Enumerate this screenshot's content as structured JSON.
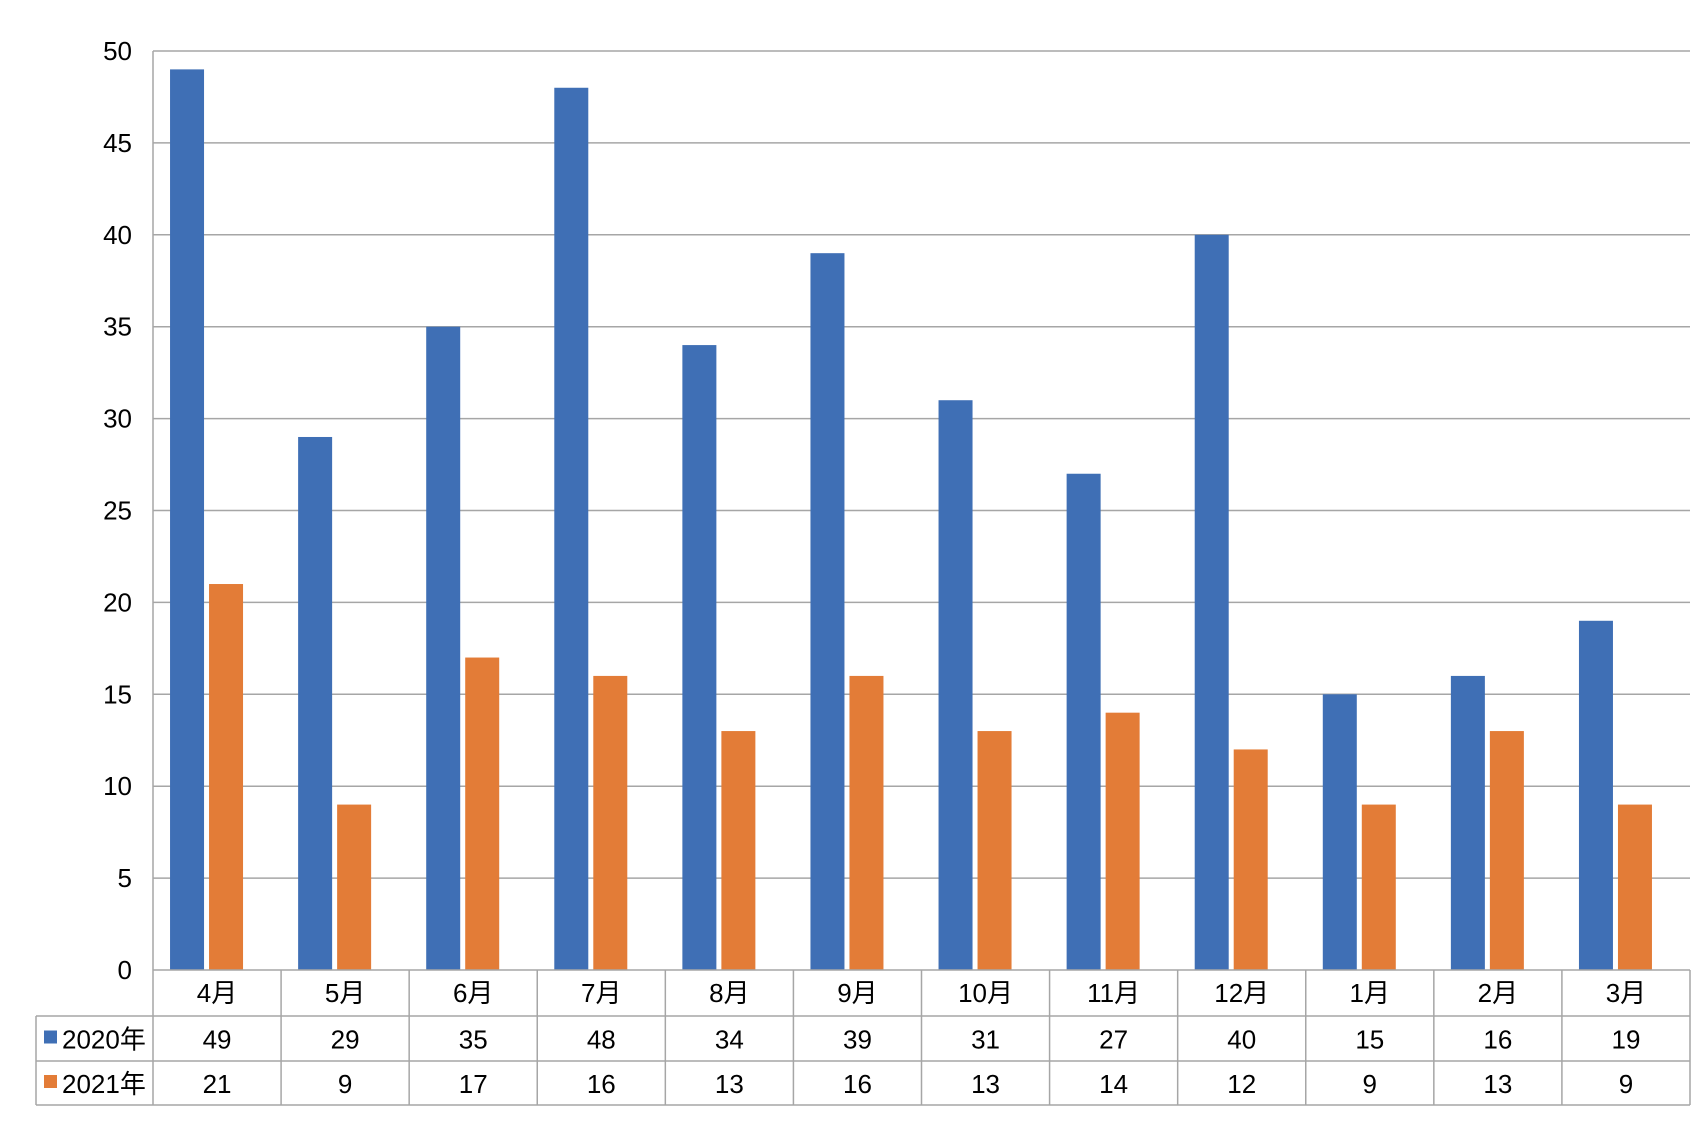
{
  "chart_data": {
    "type": "bar",
    "categories": [
      "4月",
      "5月",
      "6月",
      "7月",
      "8月",
      "9月",
      "10月",
      "11月",
      "12月",
      "1月",
      "2月",
      "3月"
    ],
    "series": [
      {
        "name": "2020年",
        "color": "#3F6FB5",
        "values": [
          49,
          29,
          35,
          48,
          34,
          39,
          31,
          27,
          40,
          15,
          16,
          19
        ]
      },
      {
        "name": "2021年",
        "color": "#E37C37",
        "values": [
          21,
          9,
          17,
          16,
          13,
          16,
          13,
          14,
          12,
          9,
          13,
          9
        ]
      }
    ],
    "ylim": [
      0,
      50
    ],
    "yticks": [
      0,
      5,
      10,
      15,
      20,
      25,
      30,
      35,
      40,
      45,
      50
    ],
    "grid": true,
    "legend": "data-table"
  }
}
